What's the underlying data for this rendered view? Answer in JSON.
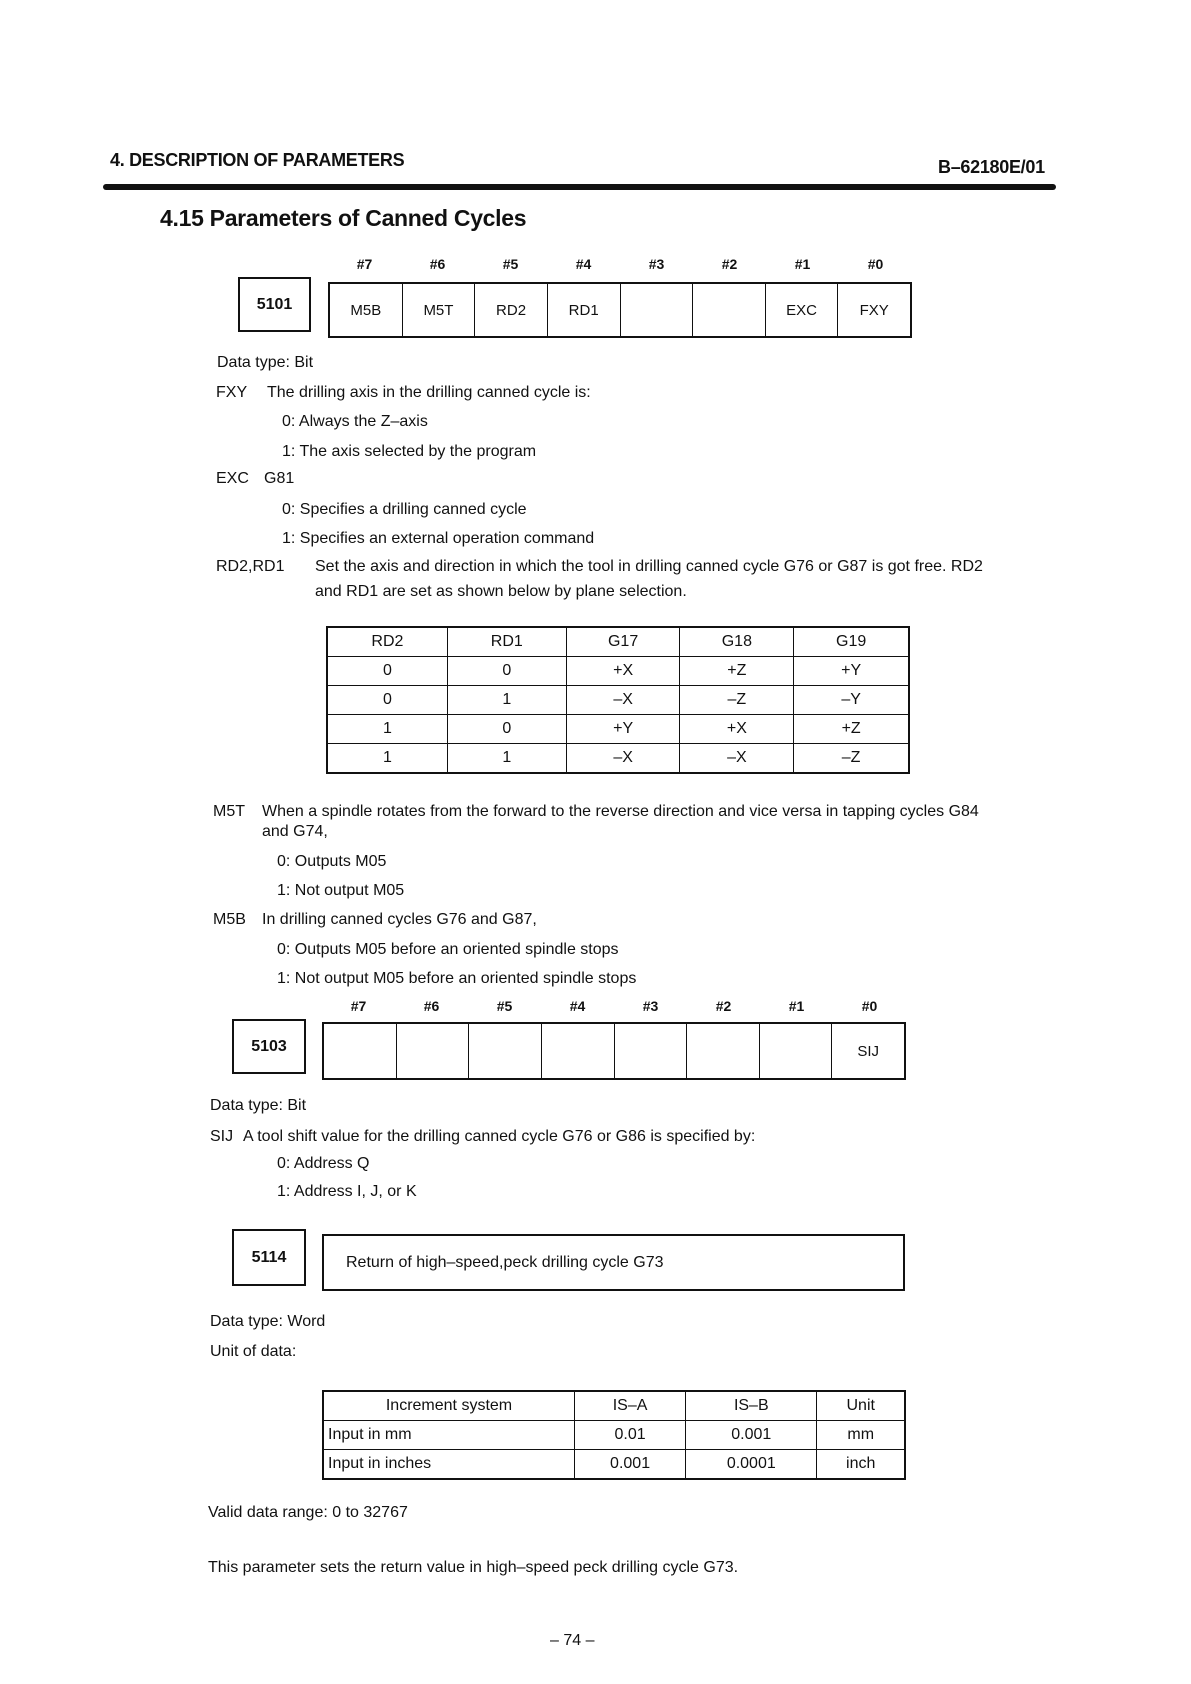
{
  "header": {
    "chapter": "4. DESCRIPTION OF PARAMETERS",
    "doc_id": "B–62180E/01"
  },
  "section_title": "4.15 Parameters of Canned Cycles",
  "bit_labels": [
    "#7",
    "#6",
    "#5",
    "#4",
    "#3",
    "#2",
    "#1",
    "#0"
  ],
  "p5101": {
    "number": "5101",
    "bits": [
      "M5B",
      "M5T",
      "RD2",
      "RD1",
      "",
      "",
      "EXC",
      "FXY"
    ],
    "data_type": "Data type:  Bit",
    "fxy": {
      "name": "FXY",
      "text": "The drilling axis in the drilling canned cycle is:",
      "opt0": "0:  Always the Z–axis",
      "opt1": "1:  The axis selected by the program"
    },
    "exc": {
      "name": "EXC",
      "text": "G81",
      "opt0": "0:  Specifies a drilling canned cycle",
      "opt1": "1:  Specifies an external operation command"
    },
    "rd": {
      "name": "RD2,RD1",
      "text1": "Set the axis and direction in which the tool in drilling canned cycle G76 or G87 is got free.  RD2",
      "text2": "and RD1 are set as shown below by plane selection."
    },
    "rd_table": {
      "headers": [
        "RD2",
        "RD1",
        "G17",
        "G18",
        "G19"
      ],
      "rows": [
        [
          "0",
          "0",
          "+X",
          "+Z",
          "+Y"
        ],
        [
          "0",
          "1",
          "–X",
          "–Z",
          "–Y"
        ],
        [
          "1",
          "0",
          "+Y",
          "+X",
          "+Z"
        ],
        [
          "1",
          "1",
          "–X",
          "–X",
          "–Z"
        ]
      ]
    },
    "m5t": {
      "name": "M5T",
      "text1": "When a spindle rotates from the forward to the reverse direction and vice versa in tapping cycles G84",
      "text2": "and G74,",
      "opt0": "0:  Outputs M05",
      "opt1": "1:  Not output M05"
    },
    "m5b": {
      "name": "M5B",
      "text": "In drilling canned cycles G76 and G87,",
      "opt0": "0:  Outputs M05 before an oriented spindle stops",
      "opt1": "1:  Not output M05 before an oriented spindle stops"
    }
  },
  "p5103": {
    "number": "5103",
    "bits": [
      "",
      "",
      "",
      "",
      "",
      "",
      "",
      "SIJ"
    ],
    "data_type": "Data type:  Bit",
    "sij": {
      "name": "SIJ",
      "text": "A tool shift value for the drilling canned cycle G76 or G86 is specified by:",
      "opt0": "0:  Address Q",
      "opt1": "1:  Address I, J, or K"
    }
  },
  "p5114": {
    "number": "5114",
    "description": "Return of high–speed,peck drilling cycle G73",
    "data_type": "Data type:  Word",
    "unit_label": "Unit of data:",
    "unit_table": {
      "headers": [
        "Increment system",
        "IS–A",
        "IS–B",
        "Unit"
      ],
      "rows": [
        [
          "Input in mm",
          "0.01",
          "0.001",
          "mm"
        ],
        [
          "Input in inches",
          "0.001",
          "0.0001",
          "inch"
        ]
      ]
    },
    "range": "Valid data range:  0 to 32767",
    "note": "This parameter sets the return value in high–speed peck drilling cycle G73."
  },
  "page_number": "– 74 –"
}
